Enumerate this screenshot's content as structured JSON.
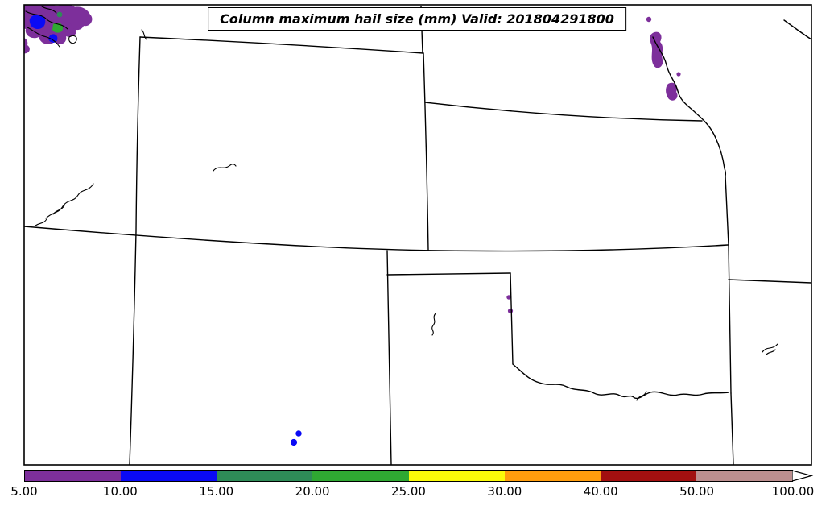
{
  "figure": {
    "title": "Column maximum hail size (mm) Valid: 201804291800"
  },
  "colorbar": {
    "tick_labels": [
      "5.00",
      "10.00",
      "15.00",
      "20.00",
      "25.00",
      "30.00",
      "40.00",
      "50.00",
      "100.00"
    ],
    "tick_values": [
      5,
      10,
      15,
      20,
      25,
      30,
      40,
      50,
      100
    ],
    "segments": [
      {
        "from": 5,
        "to": 10,
        "name": "purple",
        "color": "#7d2f9b"
      },
      {
        "from": 10,
        "to": 15,
        "name": "blue",
        "color": "#0a0af5"
      },
      {
        "from": 15,
        "to": 20,
        "name": "sea-green",
        "color": "#2e8b57"
      },
      {
        "from": 20,
        "to": 25,
        "name": "green",
        "color": "#2fa832"
      },
      {
        "from": 25,
        "to": 30,
        "name": "yellow",
        "color": "#fbfb09"
      },
      {
        "from": 30,
        "to": 40,
        "name": "orange",
        "color": "#ff9d0d"
      },
      {
        "from": 40,
        "to": 50,
        "name": "dark-red",
        "color": "#a21010"
      },
      {
        "from": 50,
        "to": 100,
        "name": "rosy-brown",
        "color": "#bc8f8f"
      }
    ],
    "over_arrow_color": "#ffffff"
  },
  "colors": {
    "purple": "#7d2f9b",
    "blue": "#0a0af5",
    "seagreen": "#2e8b57",
    "green": "#2fa832",
    "line": "#000000",
    "background": "#ffffff"
  },
  "chart_data": {
    "type": "heatmap",
    "title": "Column maximum hail size (mm) Valid: 201804291800",
    "variable": "column maximum hail size",
    "unit": "mm",
    "valid_time": "201804291800",
    "colorbar_boundaries": [
      5,
      10,
      15,
      20,
      25,
      30,
      40,
      50,
      100
    ],
    "legend_position": "bottom",
    "observed_cells": [
      {
        "area": "northwest corner cluster",
        "value_range_mm": [
          5,
          20
        ],
        "colors": [
          "purple",
          "blue",
          "green"
        ]
      },
      {
        "area": "upper-right river corridor blobs",
        "value_range_mm": [
          5,
          10
        ],
        "colors": [
          "purple"
        ]
      },
      {
        "area": "two small dots near center-right border",
        "value_range_mm": [
          5,
          10
        ],
        "colors": [
          "purple"
        ]
      },
      {
        "area": "two small dots lower-center",
        "value_range_mm": [
          10,
          15
        ],
        "colors": [
          "blue"
        ]
      }
    ]
  }
}
